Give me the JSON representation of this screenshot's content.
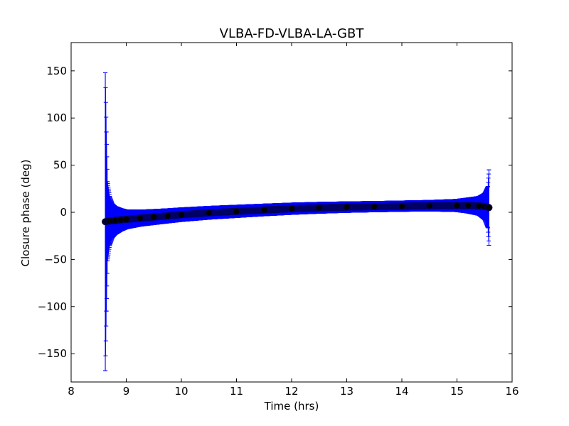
{
  "chart_data": {
    "type": "scatter",
    "title": "VLBA-FD-VLBA-LA-GBT",
    "xlabel": "Time (hrs)",
    "ylabel": "Closure phase (deg)",
    "xlim": [
      8,
      16
    ],
    "ylim": [
      -180,
      180
    ],
    "xticks": [
      8,
      9,
      10,
      11,
      12,
      13,
      14,
      15,
      16
    ],
    "xtick_labels": [
      "8",
      "9",
      "10",
      "11",
      "12",
      "13",
      "14",
      "15",
      "16"
    ],
    "yticks": [
      -150,
      -100,
      -50,
      0,
      50,
      100,
      150
    ],
    "ytick_labels": [
      "−150",
      "−100",
      "−50",
      "0",
      "50",
      "100",
      "150"
    ],
    "grid": false,
    "legend": "none",
    "colors": {
      "errorbar": "#0000ff",
      "marker": "#000000",
      "marker_edge": "#000066"
    },
    "series": [
      {
        "x": [
          8.62,
          8.64,
          8.66,
          8.7,
          8.75,
          8.8,
          8.9,
          9.0,
          9.25,
          9.5,
          9.75,
          10.0,
          10.5,
          11.0,
          11.5,
          12.0,
          12.5,
          13.0,
          13.5,
          14.0,
          14.5,
          15.0,
          15.2,
          15.4,
          15.5,
          15.56,
          15.58
        ],
        "y": [
          -10,
          -9.8,
          -9.5,
          -9.2,
          -9,
          -8.7,
          -8,
          -7.5,
          -6.2,
          -5,
          -3.8,
          -2.5,
          -0.5,
          1,
          2.5,
          3.8,
          4.8,
          5.5,
          6,
          6.5,
          7,
          7.2,
          7.2,
          6.8,
          6.2,
          5.5,
          5
        ],
        "err": [
          158,
          95,
          42,
          26,
          18,
          15,
          12,
          10,
          8.5,
          8,
          7.5,
          7.2,
          6.8,
          6.5,
          6.2,
          6.0,
          5.8,
          5.6,
          5.5,
          5.5,
          5.6,
          6.5,
          8,
          10,
          14,
          22,
          40
        ]
      }
    ]
  }
}
